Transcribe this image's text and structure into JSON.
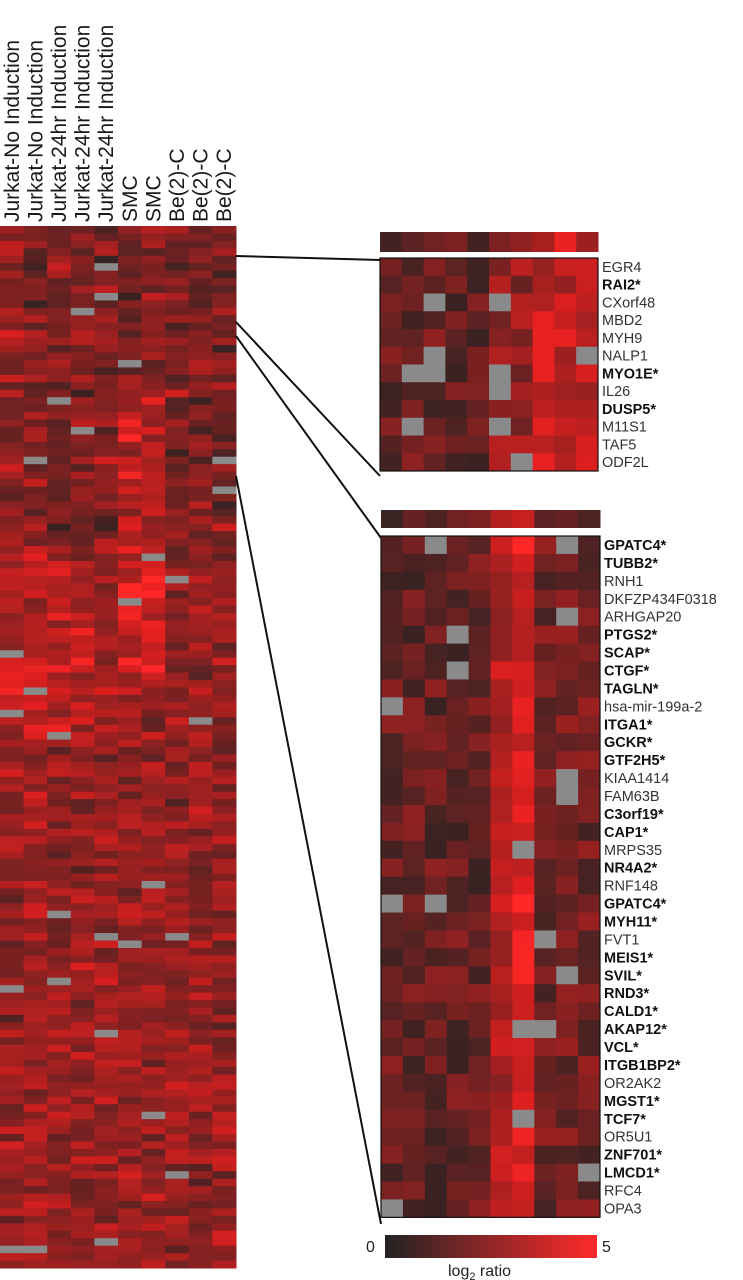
{
  "chart_data": {
    "type": "heatmap",
    "columns": [
      "Jurkat-No Induction",
      "Jurkat-No Induction",
      "Jurkat-24hr Induction",
      "Jurkat-24hr Induction",
      "Jurkat-24hr Induction",
      "SMC",
      "SMC",
      "Be(2)-C",
      "Be(2)-C",
      "Be(2)-C"
    ],
    "overview": {
      "rows": 140,
      "missing_color": "#8a8a8a"
    },
    "zoom_top": {
      "genes": [
        {
          "name": "EGR4",
          "bold": false
        },
        {
          "name": "RAI2*",
          "bold": true
        },
        {
          "name": "CXorf48",
          "bold": false
        },
        {
          "name": "MBD2",
          "bold": false
        },
        {
          "name": "MYH9",
          "bold": false
        },
        {
          "name": "NALP1",
          "bold": false
        },
        {
          "name": "MYO1E*",
          "bold": true
        },
        {
          "name": "IL26",
          "bold": false
        },
        {
          "name": "DUSP5*",
          "bold": true
        },
        {
          "name": "M11S1",
          "bold": false
        },
        {
          "name": "TAF5",
          "bold": false
        },
        {
          "name": "ODF2L",
          "bold": false
        }
      ]
    },
    "zoom_bottom": {
      "genes": [
        {
          "name": "GPATC4*",
          "bold": true
        },
        {
          "name": "TUBB2*",
          "bold": true
        },
        {
          "name": "RNH1",
          "bold": false
        },
        {
          "name": "DKFZP434F0318",
          "bold": false
        },
        {
          "name": "ARHGAP20",
          "bold": false
        },
        {
          "name": "PTGS2*",
          "bold": true
        },
        {
          "name": "SCAP*",
          "bold": true
        },
        {
          "name": "CTGF*",
          "bold": true
        },
        {
          "name": "TAGLN*",
          "bold": true
        },
        {
          "name": "hsa-mir-199a-2",
          "bold": false
        },
        {
          "name": "ITGA1*",
          "bold": true
        },
        {
          "name": "GCKR*",
          "bold": true
        },
        {
          "name": "GTF2H5*",
          "bold": true
        },
        {
          "name": "KIAA1414",
          "bold": false
        },
        {
          "name": "FAM63B",
          "bold": false
        },
        {
          "name": "C3orf19*",
          "bold": true
        },
        {
          "name": "CAP1*",
          "bold": true
        },
        {
          "name": "MRPS35",
          "bold": false
        },
        {
          "name": "NR4A2*",
          "bold": true
        },
        {
          "name": "RNF148",
          "bold": false
        },
        {
          "name": "GPATC4*",
          "bold": true
        },
        {
          "name": "MYH11*",
          "bold": true
        },
        {
          "name": "FVT1",
          "bold": false
        },
        {
          "name": "MEIS1*",
          "bold": true
        },
        {
          "name": "SVIL*",
          "bold": true
        },
        {
          "name": "RND3*",
          "bold": true
        },
        {
          "name": "CALD1*",
          "bold": true
        },
        {
          "name": "AKAP12*",
          "bold": true
        },
        {
          "name": "VCL*",
          "bold": true
        },
        {
          "name": "ITGB1BP2*",
          "bold": true
        },
        {
          "name": "OR2AK2",
          "bold": false
        },
        {
          "name": "MGST1*",
          "bold": true
        },
        {
          "name": "TCF7*",
          "bold": true
        },
        {
          "name": "OR5U1",
          "bold": false
        },
        {
          "name": "ZNF701*",
          "bold": true
        },
        {
          "name": "LMCD1*",
          "bold": true
        },
        {
          "name": "RFC4",
          "bold": false
        },
        {
          "name": "OPA3",
          "bold": false
        }
      ]
    },
    "legend": {
      "min": 0,
      "max": 5,
      "min_label": "0",
      "max_label": "5",
      "title_main": "log",
      "title_sub": "2",
      "title_rest": " ratio",
      "color_low": "#232323",
      "color_high": "#ff2a2a"
    }
  }
}
